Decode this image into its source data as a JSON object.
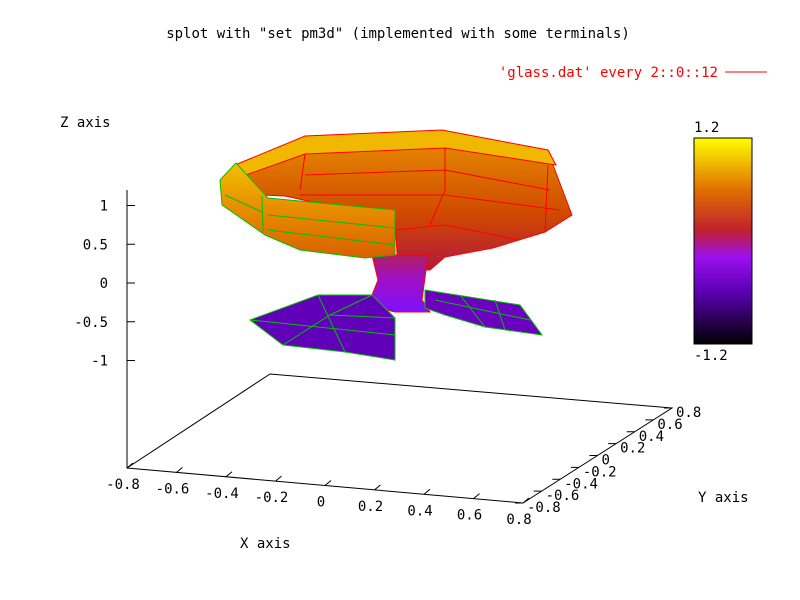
{
  "chart_data": {
    "type": "surface3d-pm3d",
    "title": "splot with \"set pm3d\" (implemented with some terminals)",
    "legend": {
      "label": "'glass.dat' every 2::0::12",
      "color": "#ff0000",
      "placement": "top-right"
    },
    "xlabel": "X axis",
    "ylabel": "Y axis",
    "zlabel": "Z axis",
    "xlim": [
      -0.8,
      0.8
    ],
    "ylim": [
      -0.8,
      0.8
    ],
    "zlim": [
      -1,
      1
    ],
    "xticks": [
      "-0.8",
      "-0.6",
      "-0.4",
      "-0.2",
      "0",
      "0.2",
      "0.4",
      "0.6",
      "0.8"
    ],
    "yticks": [
      "-0.8",
      "-0.6",
      "-0.4",
      "-0.2",
      "0",
      "0.2",
      "0.4",
      "0.6",
      "0.8"
    ],
    "zticks": [
      "1",
      "0.5",
      "0",
      "-0.5",
      "-1"
    ],
    "colorbar": {
      "min_label": "-1.2",
      "max_label": "1.2",
      "range": [
        -1.2,
        1.2
      ],
      "palette": [
        "#000000",
        "#7f00ff",
        "#c02020",
        "#e08000",
        "#ffff00"
      ]
    },
    "mesh_colors": {
      "front": "#00c000",
      "back": "#ff0000"
    }
  }
}
